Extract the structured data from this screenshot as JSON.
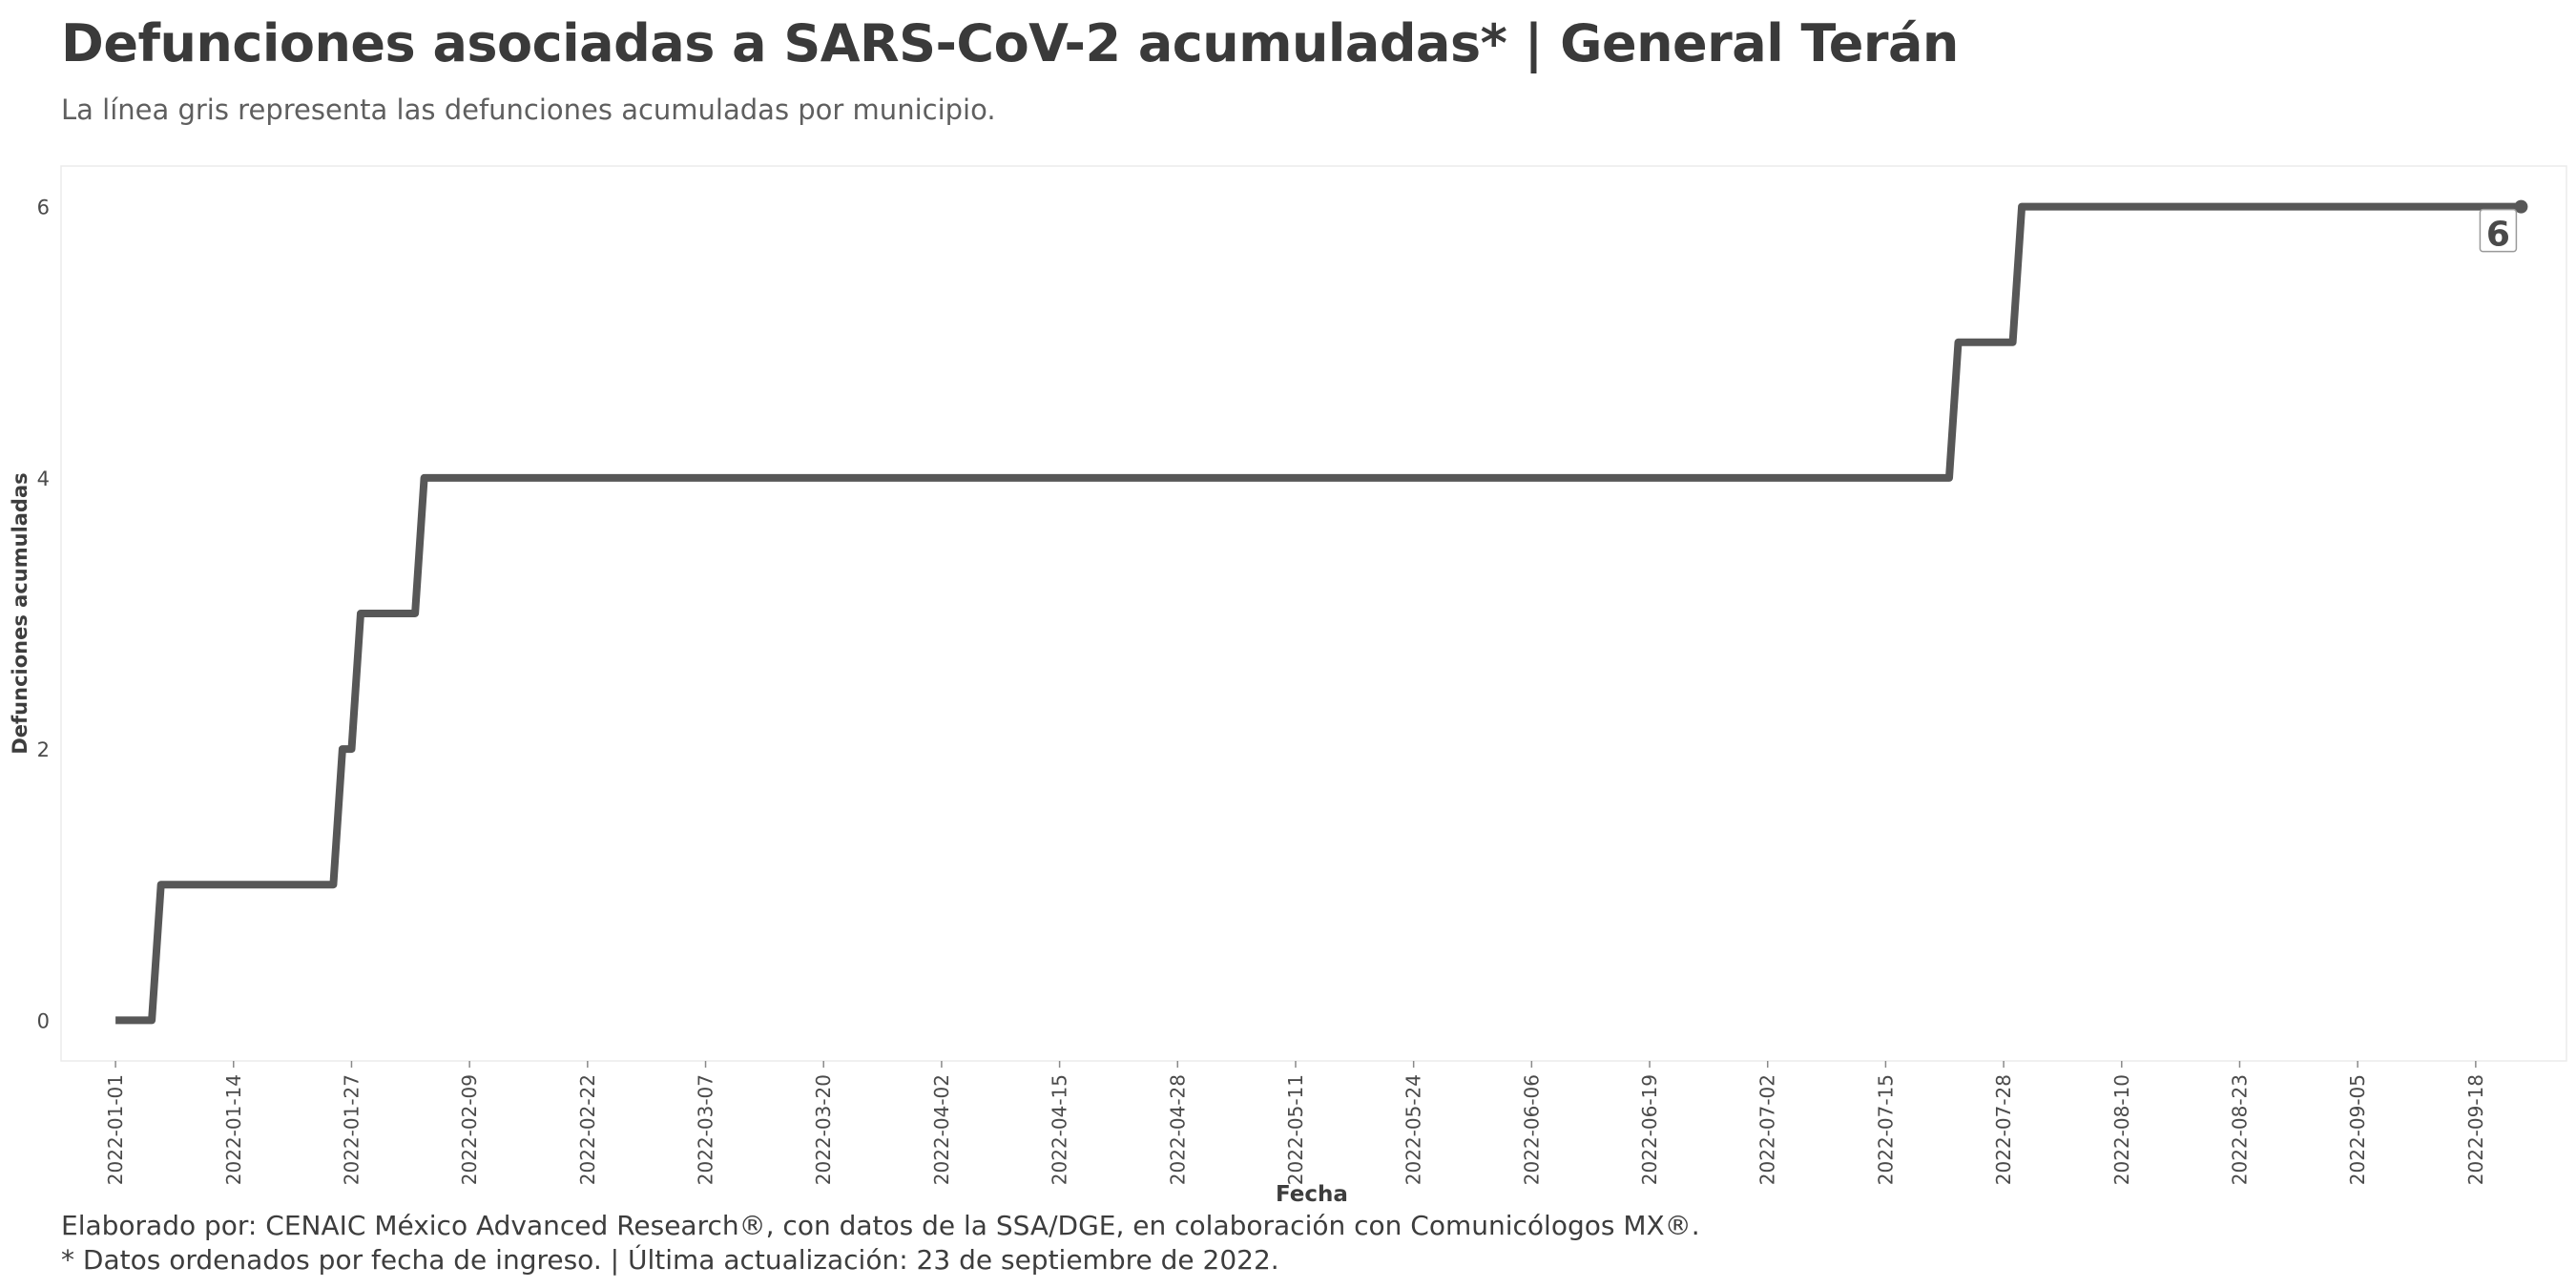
{
  "chart_data": {
    "type": "line",
    "step": true,
    "title": "Defunciones asociadas a SARS-CoV-2 acumuladas* | General Terán",
    "subtitle": "La línea gris representa las defunciones acumuladas por municipio.",
    "xlabel": "Fecha",
    "ylabel": "Defunciones acumuladas",
    "x_tick_labels": [
      "2022-01-01",
      "2022-01-14",
      "2022-01-27",
      "2022-02-09",
      "2022-02-22",
      "2022-03-07",
      "2022-03-20",
      "2022-04-02",
      "2022-04-15",
      "2022-04-28",
      "2022-05-11",
      "2022-05-24",
      "2022-06-06",
      "2022-06-19",
      "2022-07-02",
      "2022-07-15",
      "2022-07-28",
      "2022-08-10",
      "2022-08-23",
      "2022-09-05",
      "2022-09-18"
    ],
    "y_ticks": [
      0,
      2,
      4,
      6
    ],
    "ylim": [
      -0.3,
      6.3
    ],
    "xlim": [
      "2021-12-26",
      "2022-09-28"
    ],
    "grid": false,
    "line_color": "#575757",
    "series": [
      {
        "x": [
          "2022-01-01",
          "2022-01-05",
          "2022-01-06",
          "2022-01-25",
          "2022-01-26",
          "2022-01-27",
          "2022-01-28",
          "2022-02-03",
          "2022-02-04",
          "2022-07-22",
          "2022-07-23",
          "2022-07-29",
          "2022-07-30",
          "2022-09-23"
        ],
        "values": [
          0,
          0,
          1,
          1,
          2,
          2,
          3,
          3,
          4,
          4,
          5,
          5,
          6,
          6
        ]
      }
    ],
    "end_label": "6"
  },
  "captions": {
    "line1": "Elaborado por: CENAIC México Advanced Research®, con datos de la SSA/DGE, en colaboración con Comunicólogos MX®.",
    "line2": "* Datos ordenados por fecha de ingreso. | Última actualización: 23 de septiembre de 2022."
  }
}
